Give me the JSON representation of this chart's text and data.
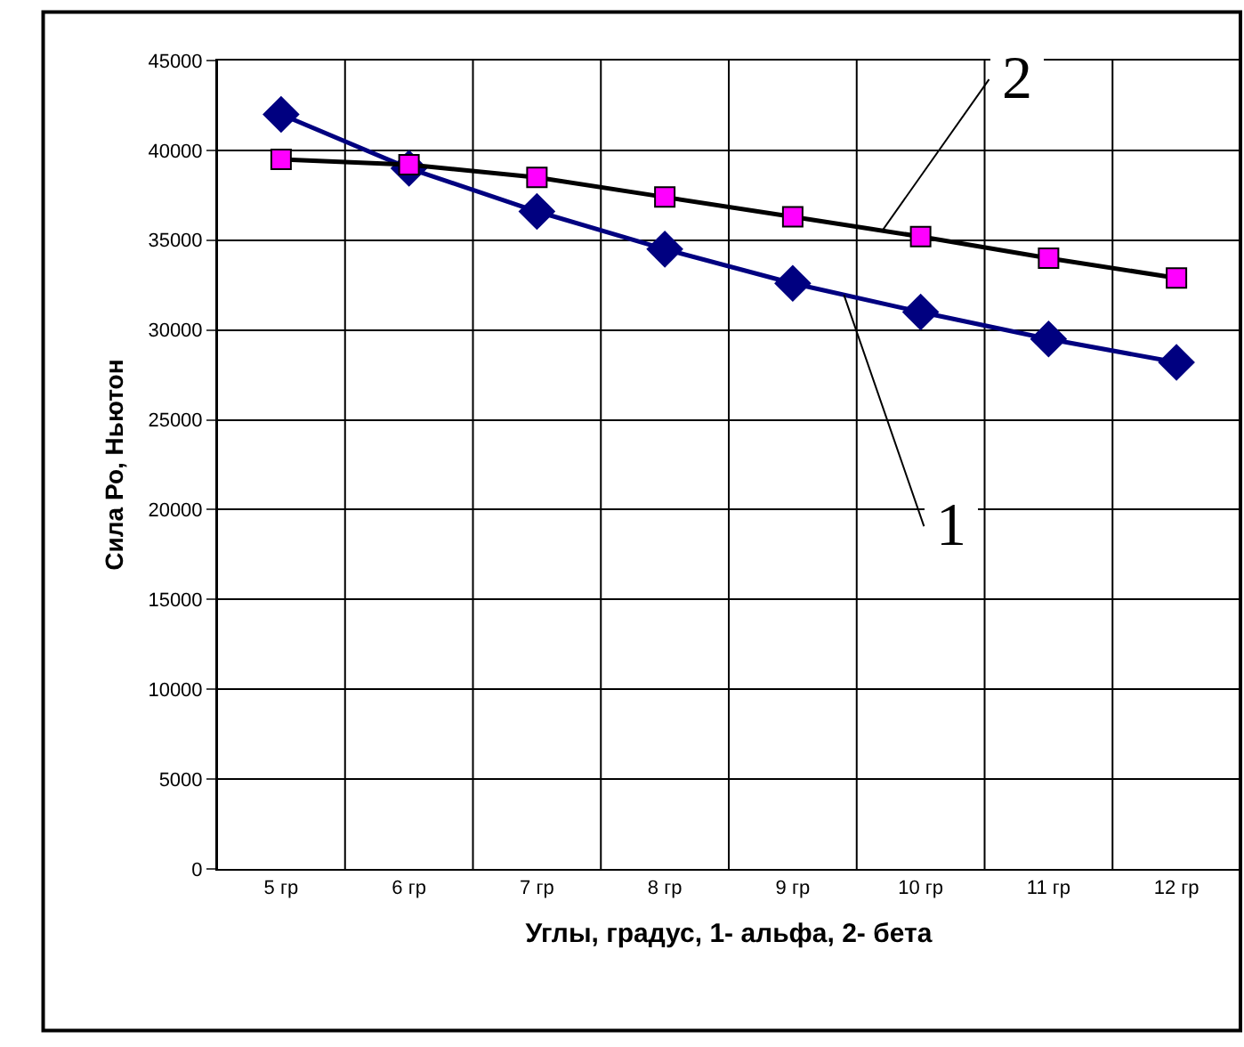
{
  "chart_data": {
    "type": "line",
    "xlabel": "Углы, градус, 1- альфа, 2- бета",
    "ylabel": "Сила Ро, Ньютон",
    "categories": [
      "5 гр",
      "6 гр",
      "7 гр",
      "8 гр",
      "9 гр",
      "10 гр",
      "11 гр",
      "12 гр"
    ],
    "series": [
      {
        "name": "1",
        "color": "#000080",
        "marker": "diamond",
        "values": [
          42000,
          39000,
          36600,
          34500,
          32600,
          31000,
          29500,
          28200
        ]
      },
      {
        "name": "2",
        "color": "#000000",
        "colors": [
          "#ff00ff",
          "#ff00ff",
          "#ff00ff",
          "#ff00ff",
          "#ff00ff",
          "#ff00ff",
          "#ff00ff",
          "#ff00ff"
        ],
        "marker": "square",
        "values": [
          39500,
          39200,
          38500,
          37400,
          36300,
          35200,
          34000,
          32900
        ]
      }
    ],
    "ylim": [
      0,
      45000
    ],
    "yticks": [
      0,
      5000,
      10000,
      15000,
      20000,
      25000,
      30000,
      35000,
      40000,
      45000
    ],
    "grid": true,
    "legend": false,
    "line_style": "solid"
  }
}
